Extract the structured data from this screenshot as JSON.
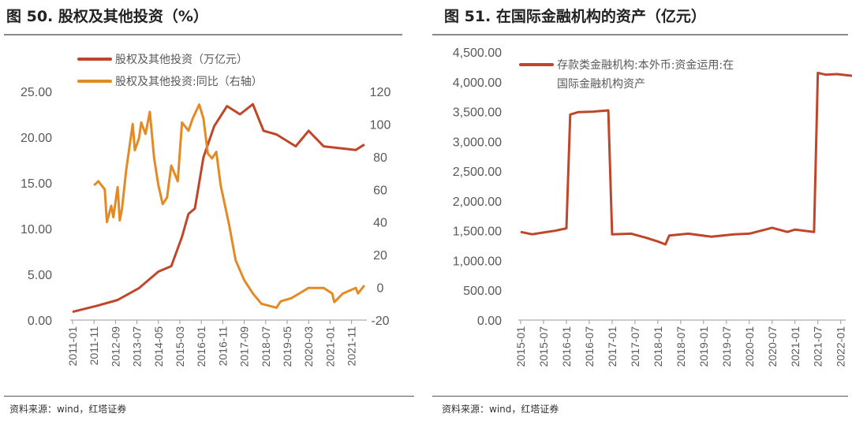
{
  "left": {
    "title": "图 50. 股权及其他投资（%）",
    "source": "资料来源：wind，红塔证券"
  },
  "right": {
    "title": "图 51. 在国际金融机构的资产（亿元）",
    "source": "资料来源：wind，红塔证券"
  },
  "chart_data": [
    {
      "type": "line",
      "title": "图 50. 股权及其他投资（%）",
      "x_ticks": [
        "2011-01",
        "2011-11",
        "2012-09",
        "2013-07",
        "2014-05",
        "2015-03",
        "2016-01",
        "2016-11",
        "2017-09",
        "2018-07",
        "2019-05",
        "2020-03",
        "2021-01",
        "2021-11"
      ],
      "y_left": {
        "ticks": [
          "0.00",
          "5.00",
          "10.00",
          "15.00",
          "20.00",
          "25.00"
        ],
        "range": [
          0,
          25
        ]
      },
      "y_right": {
        "ticks": [
          "-20",
          "0",
          "20",
          "40",
          "60",
          "80",
          "100",
          "120"
        ],
        "range": [
          -20,
          120
        ]
      },
      "legend": "top-left",
      "series": [
        {
          "name": "股权及其他投资（万亿元）",
          "axis": "left",
          "color": "#c0462a",
          "x": [
            "2011-01",
            "2012-01",
            "2012-10",
            "2013-08",
            "2014-05",
            "2014-11",
            "2015-04",
            "2015-07",
            "2015-10",
            "2016-02",
            "2016-07",
            "2017-01",
            "2017-07",
            "2018-01",
            "2018-06",
            "2018-12",
            "2019-09",
            "2020-03",
            "2020-10",
            "2022-01",
            "2022-05"
          ],
          "y": [
            0.9,
            1.6,
            2.2,
            3.5,
            5.3,
            5.9,
            9.1,
            11.6,
            12.2,
            17.8,
            21.2,
            23.4,
            22.5,
            23.6,
            20.7,
            20.3,
            19.0,
            20.7,
            19.0,
            18.6,
            19.2
          ]
        },
        {
          "name": "股权及其他投资:同比（右轴）",
          "axis": "right",
          "color": "#e48a25",
          "x": [
            "2011-11",
            "2012-01",
            "2012-04",
            "2012-05",
            "2012-07",
            "2012-08",
            "2012-10",
            "2012-11",
            "2012-12",
            "2013-02",
            "2013-05",
            "2013-06",
            "2013-08",
            "2013-09",
            "2013-11",
            "2014-01",
            "2014-03",
            "2014-05",
            "2014-07",
            "2014-09",
            "2014-11",
            "2015-02",
            "2015-04",
            "2015-07",
            "2015-09",
            "2015-12",
            "2016-02",
            "2016-04",
            "2016-06",
            "2016-08",
            "2016-10",
            "2017-02",
            "2017-05",
            "2017-09",
            "2018-01",
            "2018-05",
            "2018-12",
            "2019-02",
            "2019-07",
            "2020-03",
            "2020-10",
            "2021-02",
            "2021-03",
            "2021-07",
            "2022-01",
            "2022-02",
            "2022-05"
          ],
          "y": [
            62.5,
            65,
            60,
            40,
            50,
            43,
            61.5,
            41,
            48,
            72,
            100,
            84,
            91.5,
            101,
            94,
            107.5,
            79,
            62.5,
            51,
            55,
            74.6,
            65,
            101,
            96,
            103.5,
            112,
            103.5,
            82,
            79,
            83,
            62.5,
            38,
            16.6,
            4.5,
            -3.7,
            -10,
            -12.4,
            -8.5,
            -6.6,
            -0.3,
            -0.3,
            -3.7,
            -9,
            -3.7,
            -0.3,
            -3.7,
            1.2
          ]
        }
      ]
    },
    {
      "type": "line",
      "title": "图 51. 在国际金融机构的资产（亿元）",
      "x_ticks": [
        "2015-01",
        "2015-07",
        "2016-01",
        "2016-07",
        "2017-01",
        "2017-07",
        "2018-01",
        "2018-07",
        "2019-01",
        "2019-07",
        "2020-01",
        "2020-07",
        "2021-01",
        "2021-07",
        "2022-01"
      ],
      "y_left": {
        "ticks": [
          "0.00",
          "500.00",
          "1,000.00",
          "1,500.00",
          "2,000.00",
          "2,500.00",
          "3,000.00",
          "3,500.00",
          "4,000.00",
          "4,500.00"
        ],
        "range": [
          0,
          4500
        ]
      },
      "legend": "top-left",
      "series": [
        {
          "name": "存款类金融机构:本外币:资金运用:在国际金融机构资产",
          "legend_lines": [
            "存款类金融机构:本外币:资金运用:在",
            "国际金融机构资产"
          ],
          "axis": "left",
          "color": "#c0462a",
          "x": [
            "2015-01",
            "2015-04",
            "2015-07",
            "2015-10",
            "2016-01",
            "2016-02",
            "2016-04",
            "2016-08",
            "2016-12",
            "2017-01",
            "2017-06",
            "2017-10",
            "2018-01",
            "2018-03",
            "2018-04",
            "2018-09",
            "2019-03",
            "2019-09",
            "2020-01",
            "2020-07",
            "2020-11",
            "2021-01",
            "2021-06",
            "2021-07",
            "2021-09",
            "2021-12",
            "2022-04"
          ],
          "y": [
            1480,
            1440,
            1470,
            1500,
            1540,
            3450,
            3490,
            3500,
            3520,
            1440,
            1450,
            1380,
            1320,
            1270,
            1420,
            1450,
            1400,
            1440,
            1450,
            1550,
            1480,
            1520,
            1480,
            4150,
            4120,
            4130,
            4100
          ]
        }
      ]
    }
  ]
}
